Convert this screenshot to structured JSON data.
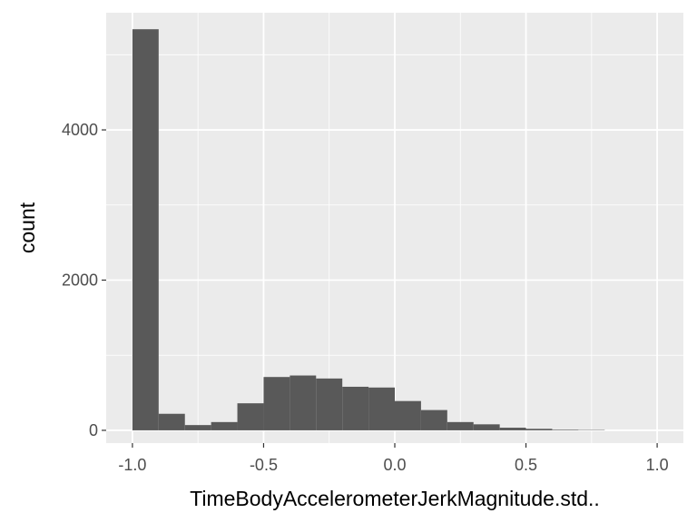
{
  "chart_data": {
    "type": "bar",
    "title": "",
    "xlabel": "TimeBodyAccelerometerJerkMagnitude.std..",
    "ylabel": "count",
    "xlim": [
      -1.1,
      1.1
    ],
    "ylim": [
      -170,
      5560
    ],
    "x_ticks": [
      -1.0,
      -0.5,
      0.0,
      0.5,
      1.0
    ],
    "x_tick_labels": [
      "-1.0",
      "-0.5",
      "0.0",
      "0.5",
      "1.0"
    ],
    "y_ticks": [
      0,
      2000,
      4000
    ],
    "y_tick_labels": [
      "0",
      "2000",
      "4000"
    ],
    "grid": true,
    "bins": [
      {
        "x0": -1.0,
        "x1": -0.9,
        "count": 5340
      },
      {
        "x0": -0.9,
        "x1": -0.8,
        "count": 220
      },
      {
        "x0": -0.8,
        "x1": -0.7,
        "count": 70
      },
      {
        "x0": -0.7,
        "x1": -0.6,
        "count": 110
      },
      {
        "x0": -0.6,
        "x1": -0.5,
        "count": 360
      },
      {
        "x0": -0.5,
        "x1": -0.4,
        "count": 710
      },
      {
        "x0": -0.4,
        "x1": -0.3,
        "count": 730
      },
      {
        "x0": -0.3,
        "x1": -0.2,
        "count": 690
      },
      {
        "x0": -0.2,
        "x1": -0.1,
        "count": 580
      },
      {
        "x0": -0.1,
        "x1": 0.0,
        "count": 570
      },
      {
        "x0": 0.0,
        "x1": 0.1,
        "count": 390
      },
      {
        "x0": 0.1,
        "x1": 0.2,
        "count": 270
      },
      {
        "x0": 0.2,
        "x1": 0.3,
        "count": 110
      },
      {
        "x0": 0.3,
        "x1": 0.4,
        "count": 80
      },
      {
        "x0": 0.4,
        "x1": 0.5,
        "count": 35
      },
      {
        "x0": 0.5,
        "x1": 0.6,
        "count": 20
      },
      {
        "x0": 0.6,
        "x1": 0.7,
        "count": 8
      },
      {
        "x0": 0.7,
        "x1": 0.8,
        "count": 5
      },
      {
        "x0": 0.8,
        "x1": 0.9,
        "count": 0
      },
      {
        "x0": 0.9,
        "x1": 1.0,
        "count": 0
      }
    ],
    "colors": {
      "panel_background": "#ebebeb",
      "grid_major": "#ffffff",
      "bar_fill": "#595959",
      "tick_mark": "#333333"
    }
  }
}
